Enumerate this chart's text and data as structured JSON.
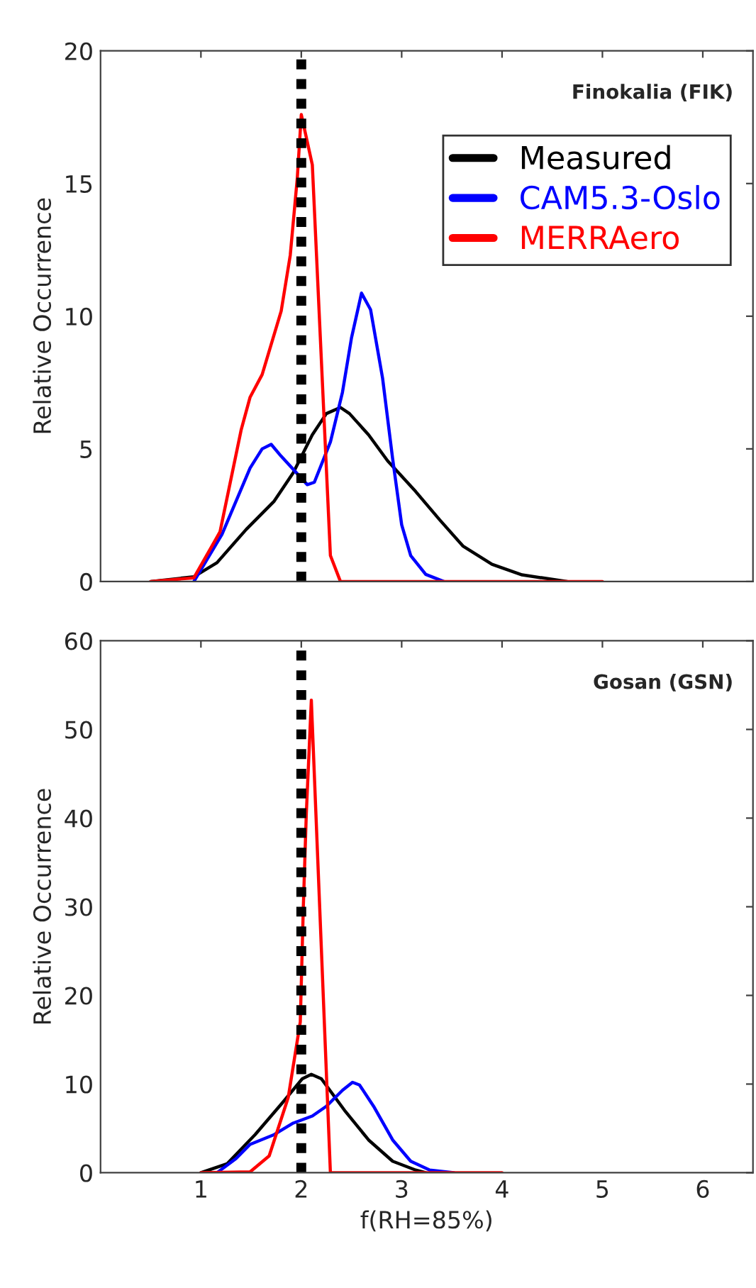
{
  "chart_data": [
    {
      "type": "line",
      "ylabel": "Relative Occurrence",
      "annotations": [
        "Finokalia (FIK)"
      ],
      "xlim": [
        0,
        6.5
      ],
      "xticks": [
        1,
        2,
        3,
        4,
        5,
        6
      ],
      "ylim": [
        0,
        20
      ],
      "yticks": [
        0,
        5,
        10,
        15,
        20
      ],
      "tick_labels": "y",
      "grid": false,
      "legend": "top right",
      "line_style": "solid",
      "ref_lines": [
        {
          "axis": "x",
          "value": 2,
          "color": "#000000",
          "line_style": "dotted"
        }
      ],
      "series": [
        {
          "name": "Measured",
          "color": "#000000",
          "x": [
            0.5,
            0.93,
            1.16,
            1.45,
            1.73,
            1.92,
            2.11,
            2.25,
            2.39,
            2.48,
            2.67,
            2.86,
            3.14,
            3.38,
            3.61,
            3.9,
            4.2,
            4.65
          ],
          "values": [
            0,
            0.18,
            0.71,
            1.96,
            3.03,
            4.1,
            5.53,
            6.33,
            6.56,
            6.33,
            5.53,
            4.55,
            3.39,
            2.32,
            1.34,
            0.65,
            0.25,
            0
          ]
        },
        {
          "name": "CAM5.3-Oslo",
          "color": "#0000ff",
          "x": [
            0.93,
            1.21,
            1.49,
            1.61,
            1.7,
            1.8,
            2.06,
            2.13,
            2.29,
            2.41,
            2.5,
            2.6,
            2.69,
            2.81,
            2.91,
            3.0,
            3.09,
            3.24,
            3.42
          ],
          "values": [
            0,
            1.78,
            4.28,
            5.0,
            5.17,
            4.72,
            3.65,
            3.74,
            5.26,
            7.13,
            9.18,
            10.87,
            10.25,
            7.66,
            4.63,
            2.14,
            0.98,
            0.27,
            0
          ]
        },
        {
          "name": "MERRAero",
          "color": "#ff0000",
          "x": [
            0.5,
            0.93,
            1.19,
            1.4,
            1.49,
            1.61,
            1.8,
            1.89,
            1.96,
            2.0,
            2.11,
            2.29,
            2.39,
            5.0
          ],
          "values": [
            0,
            0.14,
            1.87,
            5.7,
            6.95,
            7.8,
            10.2,
            12.3,
            15.2,
            17.6,
            15.7,
            0.98,
            0,
            0
          ]
        }
      ]
    },
    {
      "type": "line",
      "ylabel": "Relative Occurrence",
      "xlabel": "f(RH=85%)",
      "annotations": [
        "Gosan (GSN)"
      ],
      "xlim": [
        0,
        6.5
      ],
      "xticks": [
        1,
        2,
        3,
        4,
        5,
        6
      ],
      "ylim": [
        0,
        60
      ],
      "yticks": [
        0,
        10,
        20,
        30,
        40,
        50,
        60
      ],
      "grid": false,
      "line_style": "solid",
      "ref_lines": [
        {
          "axis": "x",
          "value": 2,
          "color": "#000000",
          "line_style": "dotted"
        }
      ],
      "series": [
        {
          "color": "#000000",
          "x": [
            1.0,
            1.26,
            1.54,
            1.82,
            2.01,
            2.1,
            2.2,
            2.44,
            2.67,
            2.91,
            3.14,
            3.24
          ],
          "values": [
            0,
            1,
            4.3,
            8,
            10.6,
            11.1,
            10.6,
            6.9,
            3.7,
            1.3,
            0.3,
            0
          ]
        },
        {
          "color": "#0000ff",
          "x": [
            1.16,
            1.35,
            1.49,
            1.73,
            1.92,
            2.11,
            2.25,
            2.41,
            2.51,
            2.58,
            2.72,
            2.91,
            3.09,
            3.28,
            3.52
          ],
          "values": [
            0,
            1.6,
            3.2,
            4.3,
            5.6,
            6.4,
            7.5,
            9.3,
            10.2,
            9.9,
            7.5,
            3.7,
            1.3,
            0.3,
            0
          ]
        },
        {
          "color": "#ff0000",
          "x": [
            1.0,
            1.49,
            1.68,
            1.87,
            1.99,
            2.02,
            2.05,
            2.1,
            2.29,
            4.0
          ],
          "values": [
            0,
            0.1,
            1.9,
            8.5,
            17,
            29.9,
            40.5,
            53.3,
            0,
            0
          ]
        }
      ]
    }
  ]
}
